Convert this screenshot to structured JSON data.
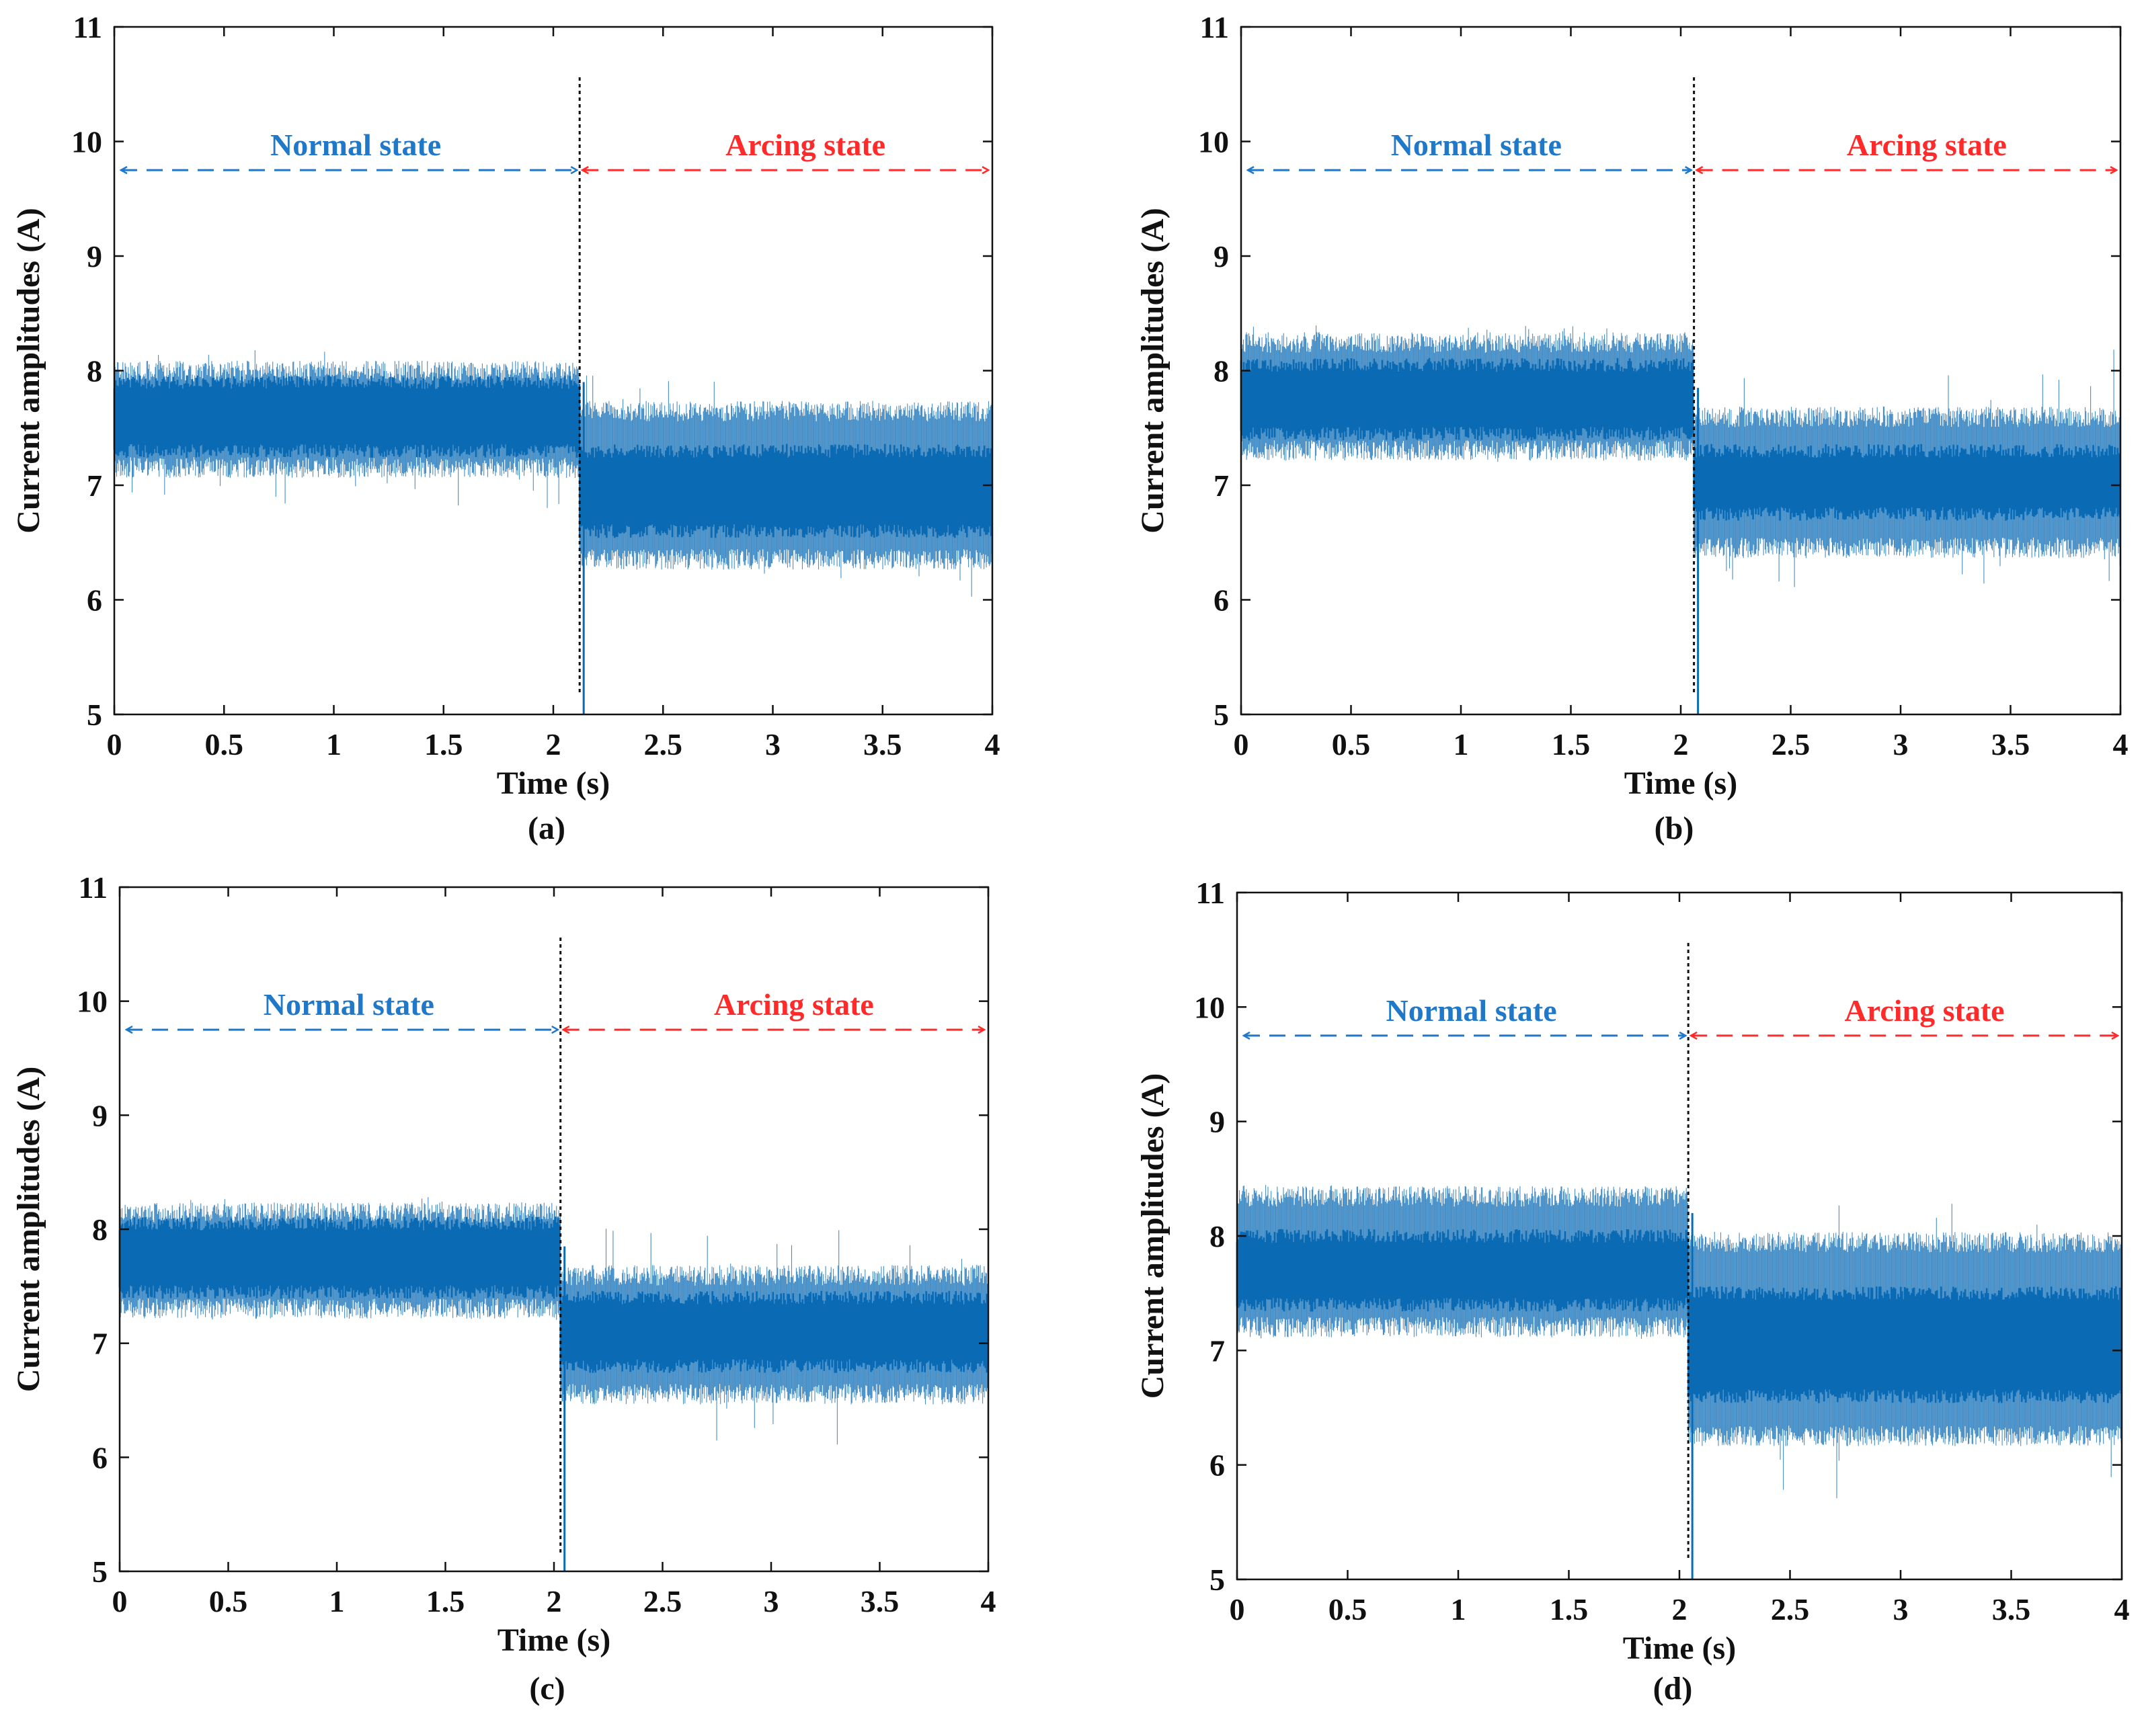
{
  "figure": {
    "panels": [
      {
        "id": "a",
        "caption": "(a)",
        "event_time": 2.12,
        "normal_label": "Normal state",
        "arcing_label": "Arcing state"
      },
      {
        "id": "b",
        "caption": "(b)",
        "event_time": 2.06,
        "normal_label": "Normal state",
        "arcing_label": "Arcing state"
      },
      {
        "id": "c",
        "caption": "(c)",
        "event_time": 2.03,
        "normal_label": "Normal state",
        "arcing_label": "Arcing state"
      },
      {
        "id": "d",
        "caption": "(d)",
        "event_time": 2.04,
        "normal_label": "Normal state",
        "arcing_label": "Arcing state"
      }
    ]
  },
  "chart_data": [
    {
      "type": "line",
      "title": "",
      "caption": "(a)",
      "xlabel": "Time (s)",
      "ylabel": "Current amplitudes (A)",
      "xlim": [
        0,
        4
      ],
      "ylim": [
        5,
        11
      ],
      "xticks": [
        0,
        0.5,
        1,
        1.5,
        2,
        2.5,
        3,
        3.5,
        4
      ],
      "xtick_labels": [
        "0",
        "0.5",
        "1",
        "1.5",
        "2",
        "2.5",
        "3",
        "3.5",
        "4"
      ],
      "yticks": [
        5,
        6,
        7,
        8,
        9,
        10,
        11
      ],
      "ytick_labels": [
        "5",
        "6",
        "7",
        "8",
        "9",
        "10",
        "11"
      ],
      "grid": false,
      "line_color": "#0a6ab4",
      "arc_onset_time": 2.12,
      "annotations": [
        {
          "text": "Normal state",
          "x_start": 0,
          "x_end": 2.12,
          "y": 9.75,
          "color": "#1f78c8"
        },
        {
          "text": "Arcing state",
          "x_start": 2.12,
          "x_end": 4,
          "y": 9.75,
          "color": "#ff2a2a"
        }
      ],
      "series": [
        {
          "name": "Normal state",
          "x_range": [
            0,
            2.12
          ],
          "mean": 7.55,
          "envelope": [
            7.1,
            8.05
          ],
          "core": [
            7.3,
            7.9
          ],
          "peak_max": 8.25,
          "peak_min": 6.8
        },
        {
          "name": "Arcing state",
          "x_range": [
            2.12,
            4
          ],
          "mean": 6.95,
          "envelope": [
            6.3,
            7.7
          ],
          "core": [
            6.6,
            7.3
          ],
          "peak_max": 8.0,
          "peak_min": 5.85,
          "dip_at_onset": 5.0
        }
      ]
    },
    {
      "type": "line",
      "title": "",
      "caption": "(b)",
      "xlabel": "Time (s)",
      "ylabel": "Current amplitudes (A)",
      "xlim": [
        0,
        4
      ],
      "ylim": [
        5,
        11
      ],
      "xticks": [
        0,
        0.5,
        1,
        1.5,
        2,
        2.5,
        3,
        3.5,
        4
      ],
      "xtick_labels": [
        "0",
        "0.5",
        "1",
        "1.5",
        "2",
        "2.5",
        "3",
        "3.5",
        "4"
      ],
      "yticks": [
        5,
        6,
        7,
        8,
        9,
        10,
        11
      ],
      "ytick_labels": [
        "5",
        "6",
        "7",
        "8",
        "9",
        "10",
        "11"
      ],
      "grid": false,
      "line_color": "#0a6ab4",
      "arc_onset_time": 2.06,
      "annotations": [
        {
          "text": "Normal state",
          "x_start": 0,
          "x_end": 2.06,
          "y": 9.75,
          "color": "#1f78c8"
        },
        {
          "text": "Arcing state",
          "x_start": 2.06,
          "x_end": 4,
          "y": 9.75,
          "color": "#ff2a2a"
        }
      ],
      "series": [
        {
          "name": "Normal state",
          "x_range": [
            0,
            2.06
          ],
          "mean": 7.75,
          "envelope": [
            7.25,
            8.3
          ],
          "core": [
            7.45,
            8.05
          ],
          "peak_max": 8.4,
          "peak_min": 7.2
        },
        {
          "name": "Arcing state",
          "x_range": [
            2.06,
            4
          ],
          "mean": 7.0,
          "envelope": [
            6.4,
            7.65
          ],
          "core": [
            6.75,
            7.3
          ],
          "peak_max": 8.2,
          "peak_min": 6.1,
          "dip_at_onset": 5.0
        }
      ]
    },
    {
      "type": "line",
      "title": "",
      "caption": "(c)",
      "xlabel": "Time (s)",
      "ylabel": "Current amplitudes (A)",
      "xlim": [
        0,
        4
      ],
      "ylim": [
        5,
        11
      ],
      "xticks": [
        0,
        0.5,
        1,
        1.5,
        2,
        2.5,
        3,
        3.5,
        4
      ],
      "xtick_labels": [
        "0",
        "0.5",
        "1",
        "1.5",
        "2",
        "2.5",
        "3",
        "3.5",
        "4"
      ],
      "yticks": [
        5,
        6,
        7,
        8,
        9,
        10,
        11
      ],
      "ytick_labels": [
        "5",
        "6",
        "7",
        "8",
        "9",
        "10",
        "11"
      ],
      "grid": false,
      "line_color": "#0a6ab4",
      "arc_onset_time": 2.03,
      "annotations": [
        {
          "text": "Normal state",
          "x_start": 0,
          "x_end": 2.03,
          "y": 9.75,
          "color": "#1f78c8"
        },
        {
          "text": "Arcing state",
          "x_start": 2.03,
          "x_end": 4,
          "y": 9.75,
          "color": "#ff2a2a"
        }
      ],
      "series": [
        {
          "name": "Normal state",
          "x_range": [
            0,
            2.03
          ],
          "mean": 7.75,
          "envelope": [
            7.25,
            8.2
          ],
          "core": [
            7.45,
            8.05
          ],
          "peak_max": 8.3,
          "peak_min": 7.2
        },
        {
          "name": "Arcing state",
          "x_range": [
            2.03,
            4
          ],
          "mean": 7.05,
          "envelope": [
            6.5,
            7.65
          ],
          "core": [
            6.8,
            7.4
          ],
          "peak_max": 8.1,
          "peak_min": 5.9,
          "dip_at_onset": 5.0
        }
      ]
    },
    {
      "type": "line",
      "title": "",
      "caption": "(d)",
      "xlabel": "Time (s)",
      "ylabel": "Current amplitudes (A)",
      "xlim": [
        0,
        4
      ],
      "ylim": [
        5,
        11
      ],
      "xticks": [
        0,
        0.5,
        1,
        1.5,
        2,
        2.5,
        3,
        3.5,
        4
      ],
      "xtick_labels": [
        "0",
        "0.5",
        "1",
        "1.5",
        "2",
        "2.5",
        "3",
        "3.5",
        "4"
      ],
      "yticks": [
        5,
        6,
        7,
        8,
        9,
        10,
        11
      ],
      "ytick_labels": [
        "5",
        "6",
        "7",
        "8",
        "9",
        "10",
        "11"
      ],
      "grid": false,
      "line_color": "#0a6ab4",
      "arc_onset_time": 2.04,
      "annotations": [
        {
          "text": "Normal state",
          "x_start": 0,
          "x_end": 2.04,
          "y": 9.75,
          "color": "#1f78c8"
        },
        {
          "text": "Arcing state",
          "x_start": 2.04,
          "x_end": 4,
          "y": 9.75,
          "color": "#ff2a2a"
        }
      ],
      "series": [
        {
          "name": "Normal state",
          "x_range": [
            0,
            2.04
          ],
          "mean": 7.7,
          "envelope": [
            7.15,
            8.4
          ],
          "core": [
            7.4,
            8.0
          ],
          "peak_max": 8.45,
          "peak_min": 7.1
        },
        {
          "name": "Arcing state",
          "x_range": [
            2.04,
            4
          ],
          "mean": 7.05,
          "envelope": [
            6.2,
            8.0
          ],
          "core": [
            6.6,
            7.5
          ],
          "peak_max": 8.45,
          "peak_min": 5.55,
          "dip_at_onset": 5.0
        }
      ]
    }
  ]
}
